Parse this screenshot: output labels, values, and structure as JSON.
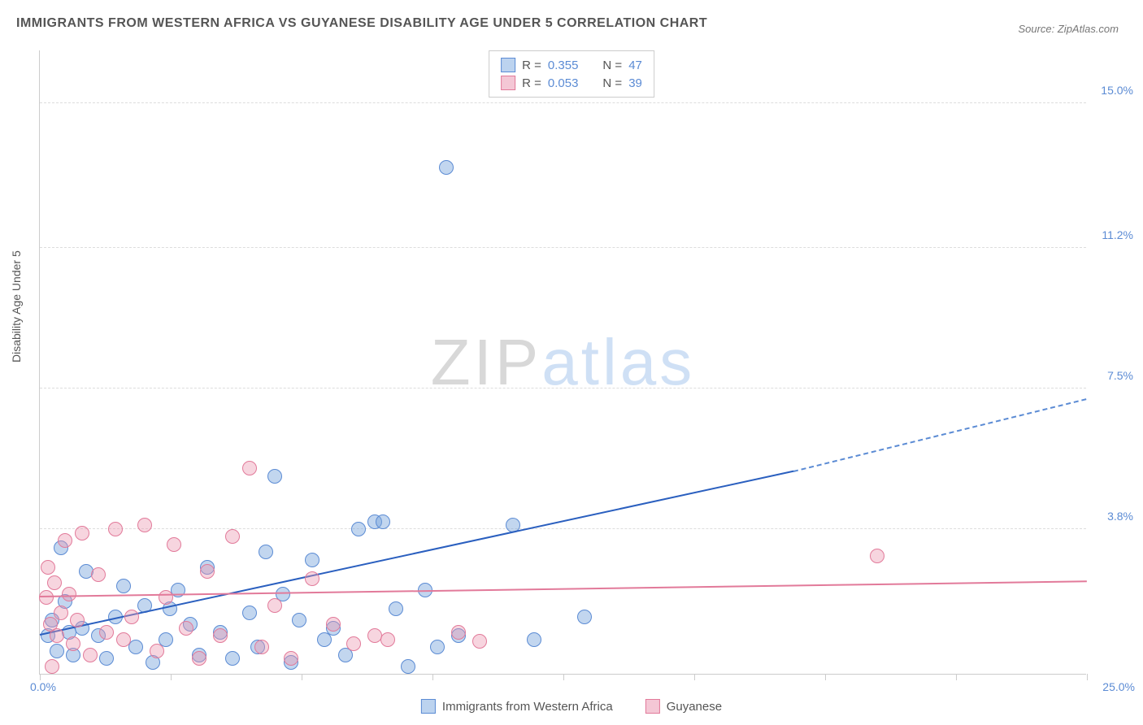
{
  "title": "IMMIGRANTS FROM WESTERN AFRICA VS GUYANESE DISABILITY AGE UNDER 5 CORRELATION CHART",
  "source_label": "Source: ",
  "source_value": "ZipAtlas.com",
  "y_axis_label": "Disability Age Under 5",
  "watermark": {
    "part1": "ZIP",
    "part2": "atlas"
  },
  "chart": {
    "type": "scatter",
    "xlim": [
      0,
      25
    ],
    "ylim": [
      0,
      16.4
    ],
    "x_origin_label": "0.0%",
    "x_max_label": "25.0%",
    "x_ticks": [
      0,
      3.125,
      6.25,
      9.375,
      12.5,
      15.625,
      18.75,
      21.875,
      25
    ],
    "y_ticks": [
      {
        "value": 3.8,
        "label": "3.8%"
      },
      {
        "value": 7.5,
        "label": "7.5%"
      },
      {
        "value": 11.2,
        "label": "11.2%"
      },
      {
        "value": 15.0,
        "label": "15.0%"
      }
    ],
    "grid_color": "#dddddd",
    "background_color": "#ffffff",
    "series": [
      {
        "name": "Immigrants from Western Africa",
        "color_fill": "rgba(120,165,220,0.45)",
        "color_stroke": "#5b8bd4",
        "swatch_bg": "#bcd3ef",
        "swatch_border": "#5b8bd4",
        "marker_radius": 9,
        "r_label": "R = ",
        "r_value": "0.355",
        "n_label": "N = ",
        "n_value": "47",
        "trend": {
          "x1": 0.0,
          "y1": 1.0,
          "x_solid_end": 18.0,
          "y_solid_end": 5.3,
          "x2": 25.0,
          "y2": 7.2,
          "solid_color": "#2a5fbf",
          "dash_color": "#5b8bd4"
        },
        "points": [
          {
            "x": 0.2,
            "y": 1.0
          },
          {
            "x": 0.3,
            "y": 1.4
          },
          {
            "x": 0.4,
            "y": 0.6
          },
          {
            "x": 0.5,
            "y": 3.3
          },
          {
            "x": 0.6,
            "y": 1.9
          },
          {
            "x": 0.7,
            "y": 1.1
          },
          {
            "x": 0.8,
            "y": 0.5
          },
          {
            "x": 1.0,
            "y": 1.2
          },
          {
            "x": 1.1,
            "y": 2.7
          },
          {
            "x": 1.4,
            "y": 1.0
          },
          {
            "x": 1.6,
            "y": 0.4
          },
          {
            "x": 1.8,
            "y": 1.5
          },
          {
            "x": 2.0,
            "y": 2.3
          },
          {
            "x": 2.3,
            "y": 0.7
          },
          {
            "x": 2.5,
            "y": 1.8
          },
          {
            "x": 2.7,
            "y": 0.3
          },
          {
            "x": 3.0,
            "y": 0.9
          },
          {
            "x": 3.1,
            "y": 1.7
          },
          {
            "x": 3.3,
            "y": 2.2
          },
          {
            "x": 3.6,
            "y": 1.3
          },
          {
            "x": 3.8,
            "y": 0.5
          },
          {
            "x": 4.0,
            "y": 2.8
          },
          {
            "x": 4.3,
            "y": 1.1
          },
          {
            "x": 4.6,
            "y": 0.4
          },
          {
            "x": 5.0,
            "y": 1.6
          },
          {
            "x": 5.2,
            "y": 0.7
          },
          {
            "x": 5.4,
            "y": 3.2
          },
          {
            "x": 5.6,
            "y": 5.2
          },
          {
            "x": 5.8,
            "y": 2.1
          },
          {
            "x": 6.0,
            "y": 0.3
          },
          {
            "x": 6.2,
            "y": 1.4
          },
          {
            "x": 6.5,
            "y": 3.0
          },
          {
            "x": 6.8,
            "y": 0.9
          },
          {
            "x": 7.0,
            "y": 1.2
          },
          {
            "x": 7.3,
            "y": 0.5
          },
          {
            "x": 7.6,
            "y": 3.8
          },
          {
            "x": 8.0,
            "y": 4.0
          },
          {
            "x": 8.2,
            "y": 4.0
          },
          {
            "x": 8.5,
            "y": 1.7
          },
          {
            "x": 8.8,
            "y": 0.2
          },
          {
            "x": 9.2,
            "y": 2.2
          },
          {
            "x": 9.5,
            "y": 0.7
          },
          {
            "x": 9.7,
            "y": 13.3
          },
          {
            "x": 10.0,
            "y": 1.0
          },
          {
            "x": 11.3,
            "y": 3.9
          },
          {
            "x": 11.8,
            "y": 0.9
          },
          {
            "x": 13.0,
            "y": 1.5
          }
        ]
      },
      {
        "name": "Guyanese",
        "color_fill": "rgba(235,150,175,0.40)",
        "color_stroke": "#e27a9a",
        "swatch_bg": "#f4c7d5",
        "swatch_border": "#e27a9a",
        "marker_radius": 9,
        "r_label": "R = ",
        "r_value": "0.053",
        "n_label": "N = ",
        "n_value": "39",
        "trend": {
          "x1": 0.0,
          "y1": 2.0,
          "x_solid_end": 25.0,
          "y_solid_end": 2.4,
          "x2": 25.0,
          "y2": 2.4,
          "solid_color": "#e27a9a",
          "dash_color": "#e27a9a"
        },
        "points": [
          {
            "x": 0.15,
            "y": 2.0
          },
          {
            "x": 0.2,
            "y": 2.8
          },
          {
            "x": 0.25,
            "y": 1.3
          },
          {
            "x": 0.3,
            "y": 0.2
          },
          {
            "x": 0.35,
            "y": 2.4
          },
          {
            "x": 0.4,
            "y": 1.0
          },
          {
            "x": 0.5,
            "y": 1.6
          },
          {
            "x": 0.6,
            "y": 3.5
          },
          {
            "x": 0.7,
            "y": 2.1
          },
          {
            "x": 0.8,
            "y": 0.8
          },
          {
            "x": 0.9,
            "y": 1.4
          },
          {
            "x": 1.0,
            "y": 3.7
          },
          {
            "x": 1.2,
            "y": 0.5
          },
          {
            "x": 1.4,
            "y": 2.6
          },
          {
            "x": 1.6,
            "y": 1.1
          },
          {
            "x": 1.8,
            "y": 3.8
          },
          {
            "x": 2.0,
            "y": 0.9
          },
          {
            "x": 2.2,
            "y": 1.5
          },
          {
            "x": 2.5,
            "y": 3.9
          },
          {
            "x": 2.8,
            "y": 0.6
          },
          {
            "x": 3.0,
            "y": 2.0
          },
          {
            "x": 3.2,
            "y": 3.4
          },
          {
            "x": 3.5,
            "y": 1.2
          },
          {
            "x": 3.8,
            "y": 0.4
          },
          {
            "x": 4.0,
            "y": 2.7
          },
          {
            "x": 4.3,
            "y": 1.0
          },
          {
            "x": 4.6,
            "y": 3.6
          },
          {
            "x": 5.0,
            "y": 5.4
          },
          {
            "x": 5.3,
            "y": 0.7
          },
          {
            "x": 5.6,
            "y": 1.8
          },
          {
            "x": 6.0,
            "y": 0.4
          },
          {
            "x": 6.5,
            "y": 2.5
          },
          {
            "x": 7.0,
            "y": 1.3
          },
          {
            "x": 7.5,
            "y": 0.8
          },
          {
            "x": 8.0,
            "y": 1.0
          },
          {
            "x": 8.3,
            "y": 0.9
          },
          {
            "x": 10.0,
            "y": 1.1
          },
          {
            "x": 10.5,
            "y": 0.85
          },
          {
            "x": 20.0,
            "y": 3.1
          }
        ]
      }
    ]
  }
}
